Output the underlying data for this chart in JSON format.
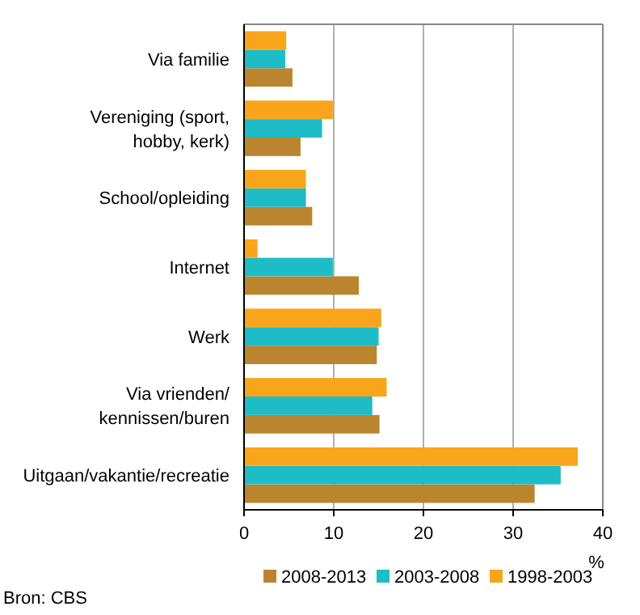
{
  "chart_data": {
    "type": "bar",
    "orientation": "horizontal",
    "categories": [
      "Via familie",
      "Vereniging (sport,\nhobby, kerk)",
      "School/opleiding",
      "Internet",
      "Werk",
      "Via vrienden/\nkennissen/buren",
      "Uitgaan/vakantie/recreatie"
    ],
    "series": [
      {
        "name": "2008-2013",
        "color": "#bb8530",
        "values": [
          5.4,
          6.3,
          7.6,
          12.8,
          14.8,
          15.1,
          32.4
        ]
      },
      {
        "name": "2003-2008",
        "color": "#1ebcc6",
        "values": [
          4.6,
          8.7,
          6.9,
          9.9,
          15.0,
          14.3,
          35.3
        ]
      },
      {
        "name": "1998-2003",
        "color": "#f9a51b",
        "values": [
          4.7,
          9.9,
          6.9,
          1.5,
          15.3,
          15.9,
          37.2
        ]
      }
    ],
    "xlim": [
      0,
      40
    ],
    "xticks": [
      0,
      10,
      20,
      30,
      40
    ],
    "xlabel": "%",
    "grid": "x",
    "legend": "bottom",
    "annotations": [
      "Bron: CBS"
    ]
  }
}
